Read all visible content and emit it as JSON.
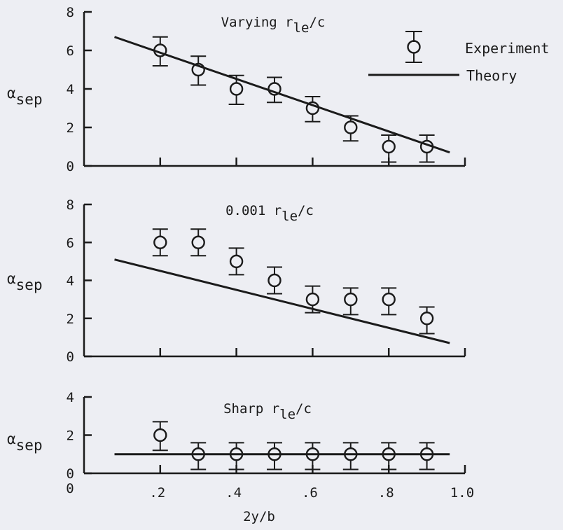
{
  "chart_data": [
    {
      "type": "scatter",
      "title": "Varying r",
      "title_sub": "le",
      "title_suffix": "/c",
      "ylabel_symbol": "α",
      "ylabel_sub": "sep",
      "ylim": [
        0,
        8
      ],
      "yticks": [
        "0",
        "2",
        "4",
        "6",
        "8"
      ],
      "xlim": [
        0,
        1.0
      ],
      "experiment": {
        "x": [
          0.2,
          0.3,
          0.4,
          0.5,
          0.6,
          0.7,
          0.8,
          0.9
        ],
        "y": [
          6,
          5,
          4,
          4,
          3,
          2,
          1,
          1
        ],
        "err_low": [
          0.8,
          0.8,
          0.8,
          0.7,
          0.7,
          0.7,
          0.8,
          0.8
        ],
        "err_high": [
          0.7,
          0.7,
          0.7,
          0.6,
          0.6,
          0.6,
          0.6,
          0.6
        ]
      },
      "theory": {
        "x": [
          0.08,
          0.96
        ],
        "y": [
          6.7,
          0.7
        ]
      },
      "legend": {
        "position": "top-right",
        "experiment_label": "Experiment",
        "theory_label": "Theory"
      }
    },
    {
      "type": "scatter",
      "title": "0.001 r",
      "title_sub": "le",
      "title_suffix": "/c",
      "ylabel_symbol": "α",
      "ylabel_sub": "sep",
      "ylim": [
        0,
        8
      ],
      "yticks": [
        "0",
        "2",
        "4",
        "6",
        "8"
      ],
      "xlim": [
        0,
        1.0
      ],
      "experiment": {
        "x": [
          0.2,
          0.3,
          0.4,
          0.5,
          0.6,
          0.7,
          0.8,
          0.9
        ],
        "y": [
          6,
          6,
          5,
          4,
          3,
          3,
          3,
          2
        ],
        "err_low": [
          0.7,
          0.7,
          0.7,
          0.7,
          0.7,
          0.8,
          0.8,
          0.8
        ],
        "err_high": [
          0.7,
          0.7,
          0.7,
          0.7,
          0.7,
          0.6,
          0.6,
          0.6
        ]
      },
      "theory": {
        "x": [
          0.08,
          0.96
        ],
        "y": [
          5.1,
          0.7
        ]
      }
    },
    {
      "type": "scatter",
      "title": "Sharp r",
      "title_sub": "le",
      "title_suffix": "/c",
      "ylabel_symbol": "α",
      "ylabel_sub": "sep",
      "ylim": [
        0,
        4
      ],
      "yticks": [
        "0",
        "2",
        "4"
      ],
      "xlim": [
        0,
        1.0
      ],
      "xticks": [
        ".2",
        ".4",
        ".6",
        ".8",
        "1.0"
      ],
      "xlabel": "2y/b",
      "experiment": {
        "x": [
          0.2,
          0.3,
          0.4,
          0.5,
          0.6,
          0.7,
          0.8,
          0.9
        ],
        "y": [
          2,
          1,
          1,
          1,
          1,
          1,
          1,
          1
        ],
        "err_low": [
          0.8,
          0.8,
          0.8,
          0.8,
          0.8,
          0.8,
          0.8,
          0.8
        ],
        "err_high": [
          0.7,
          0.6,
          0.6,
          0.6,
          0.6,
          0.6,
          0.6,
          0.6
        ]
      },
      "theory": {
        "x": [
          0.08,
          0.96
        ],
        "y": [
          1,
          1
        ]
      }
    }
  ]
}
